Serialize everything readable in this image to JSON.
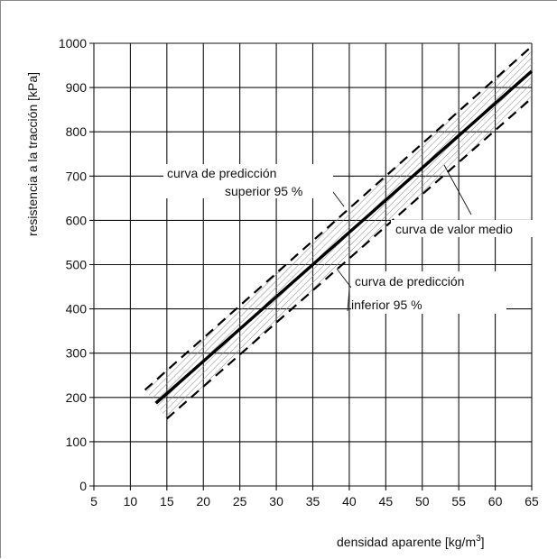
{
  "chart_data": {
    "type": "line",
    "title": "",
    "xlabel": "densidad aparente [kg/m",
    "xlabel_sup": "3",
    "xlabel_end": "]",
    "ylabel": "resistencia a la tracción [kPa]",
    "xlim": [
      5,
      65
    ],
    "ylim": [
      0,
      1000
    ],
    "x_ticks": [
      5,
      10,
      15,
      20,
      25,
      30,
      35,
      40,
      45,
      50,
      55,
      60,
      65
    ],
    "y_ticks": [
      0,
      100,
      200,
      300,
      400,
      500,
      600,
      700,
      800,
      900,
      1000
    ],
    "grid": true,
    "series": [
      {
        "name": "curva de valor medio",
        "style": "solid",
        "x": [
          13.5,
          65
        ],
        "y": [
          187,
          937
        ]
      },
      {
        "name": "curva de predicción superior 95 %",
        "style": "dashed",
        "x": [
          12,
          65
        ],
        "y": [
          217,
          993
        ]
      },
      {
        "name": "curva de predicción inferior 95 %",
        "style": "dashed",
        "x": [
          15,
          65
        ],
        "y": [
          152,
          876
        ]
      }
    ],
    "band": {
      "between": [
        "curva de predicción superior 95 %",
        "curva de predicción inferior 95 %"
      ],
      "fill": "hatched"
    },
    "annotations": [
      {
        "id": "sup",
        "lines": [
          "curva de predicción",
          "superior 95 %"
        ]
      },
      {
        "id": "mean",
        "lines": [
          "curva de valor medio"
        ]
      },
      {
        "id": "inf",
        "lines": [
          "curva de predicción",
          "inferior 95 %"
        ]
      }
    ]
  }
}
